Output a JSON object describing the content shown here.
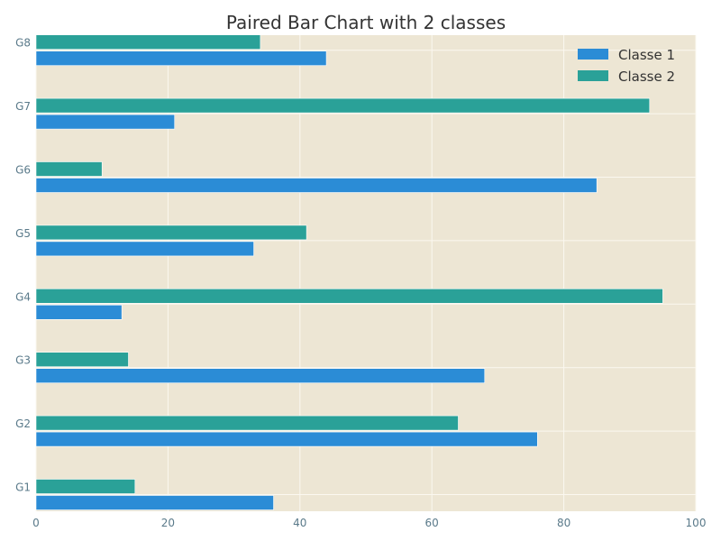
{
  "chart_data": {
    "type": "bar",
    "orientation": "horizontal",
    "title": "Paired Bar Chart with 2 classes",
    "xlabel": "",
    "ylabel": "",
    "categories": [
      "G1",
      "G2",
      "G3",
      "G4",
      "G5",
      "G6",
      "G7",
      "G8"
    ],
    "series": [
      {
        "name": "Classe 1",
        "color": "#2b8cd6",
        "values": [
          36,
          76,
          68,
          13,
          33,
          85,
          21,
          44
        ]
      },
      {
        "name": "Classe 2",
        "color": "#2aa198",
        "values": [
          15,
          64,
          14,
          95,
          41,
          10,
          93,
          34
        ]
      }
    ],
    "xlim": [
      0,
      100
    ],
    "xticks": [
      "0",
      "20",
      "40",
      "60",
      "80",
      "100"
    ],
    "grid": true,
    "legend_position": "top-right",
    "background_color": "#ede6d4",
    "grid_color": "#fbf8f0"
  }
}
